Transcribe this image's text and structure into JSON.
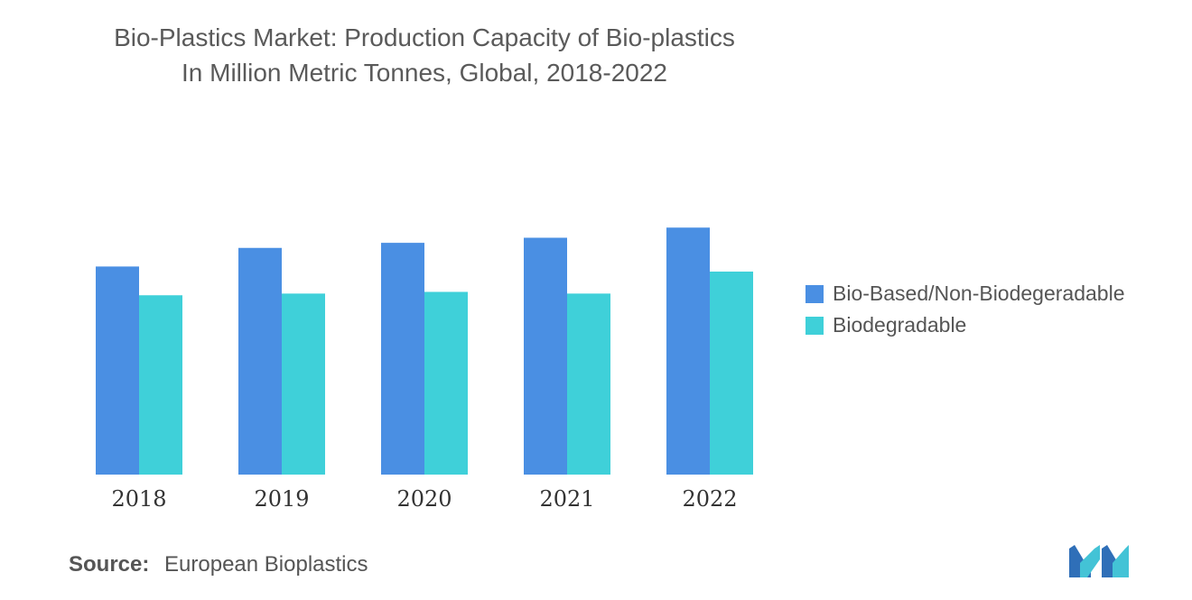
{
  "header": {
    "title_line1": "Bio-Plastics Market: Production Capacity of Bio-plastics",
    "title_line2": "In Million Metric Tonnes, Global, 2018-2022"
  },
  "colors": {
    "series1": "#4a8fe3",
    "series2": "#3fd0d9",
    "logo_dark": "#2f6fb8",
    "logo_light": "#43c3d6"
  },
  "chart_data": {
    "type": "bar",
    "categories": [
      "2018",
      "2019",
      "2020",
      "2021",
      "2022"
    ],
    "series": [
      {
        "name": "Bio-Based/Non-Biodegeradable",
        "values": [
          1.23,
          1.34,
          1.37,
          1.4,
          1.46
        ]
      },
      {
        "name": "Biodegradable",
        "values": [
          1.06,
          1.07,
          1.08,
          1.07,
          1.2
        ]
      }
    ],
    "title": "Bio-Plastics Market: Production Capacity of Bio-plastics In Million Metric Tonnes, Global, 2018-2022",
    "xlabel": "",
    "ylabel": "",
    "ylim": [
      0,
      1.6
    ],
    "grid": false,
    "legend_position": "right"
  },
  "source": {
    "label": "Source:",
    "text": "European Bioplastics"
  }
}
